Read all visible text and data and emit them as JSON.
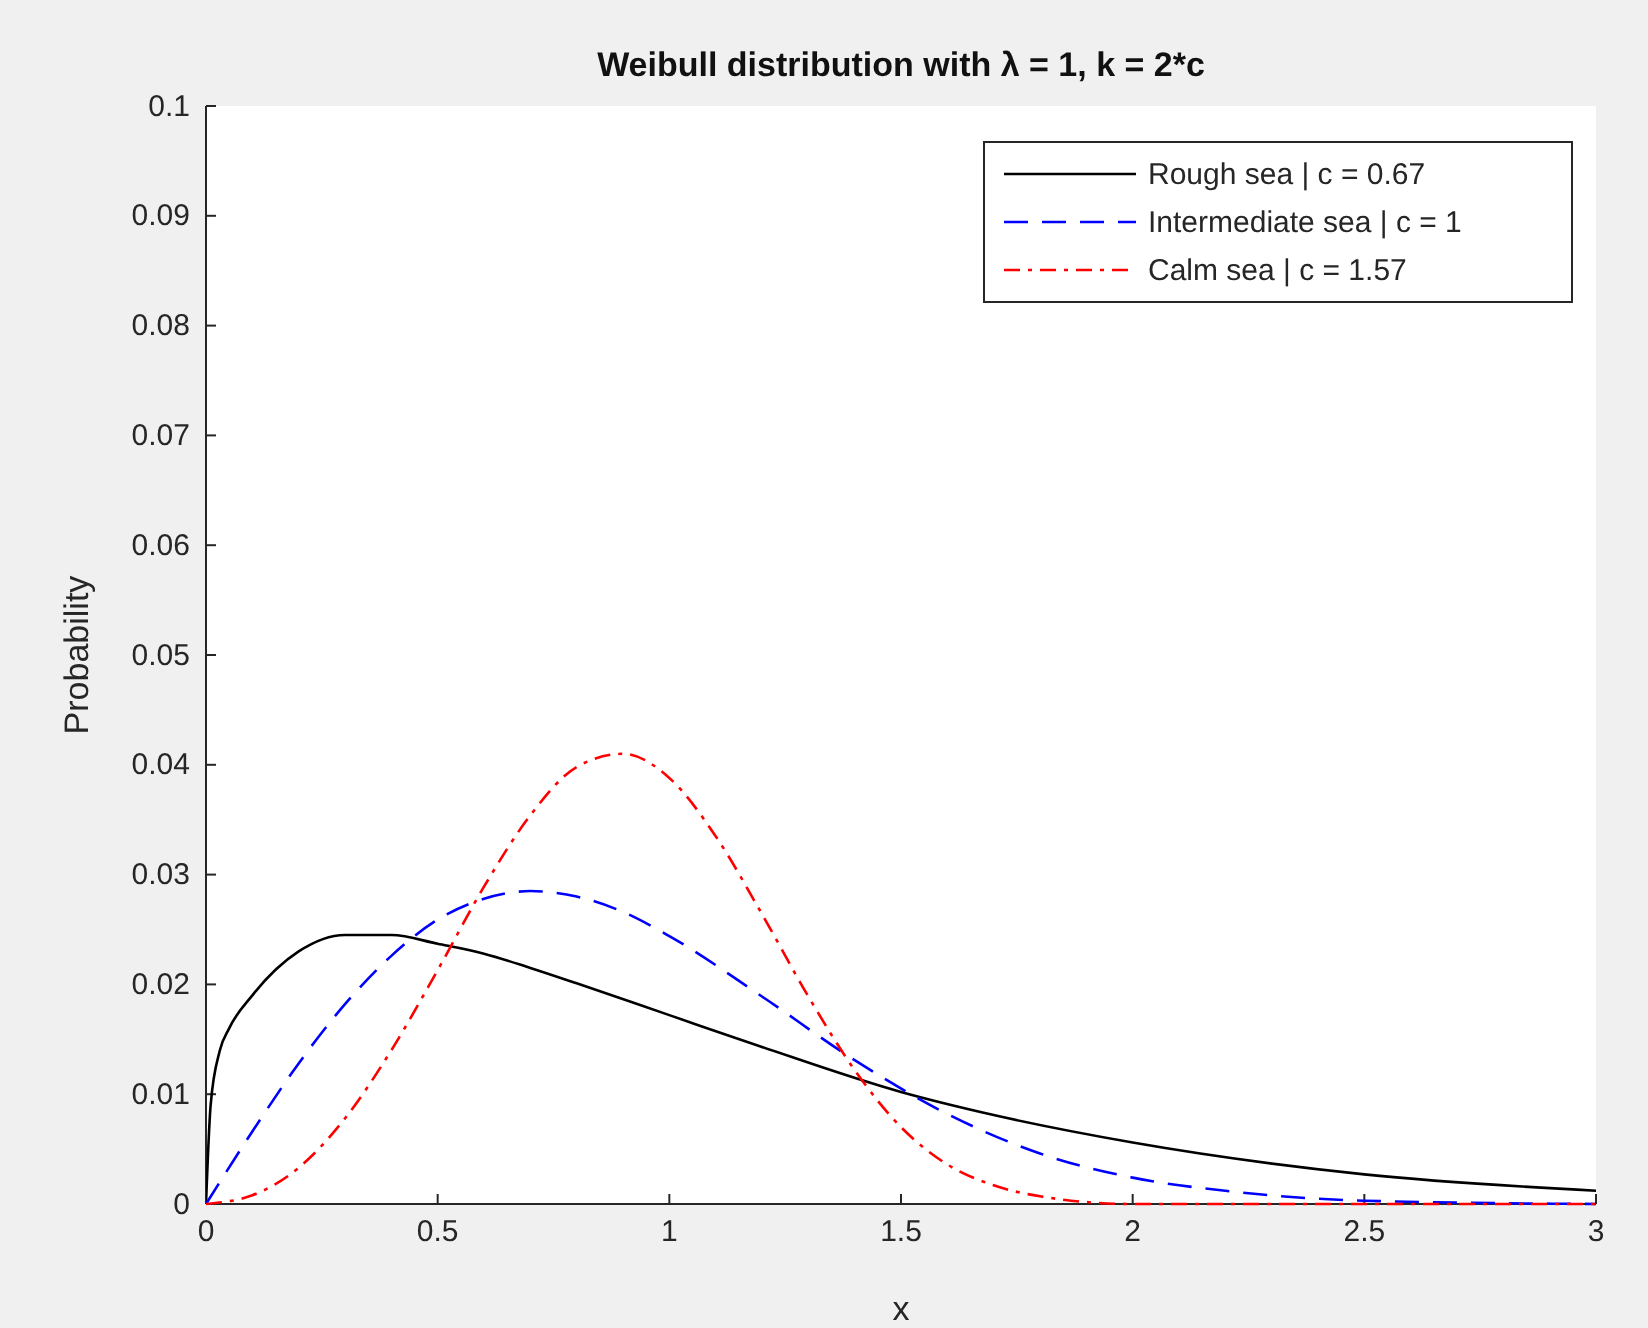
{
  "chart_data": {
    "type": "line",
    "title": "Weibull distribution with λ = 1, k = 2*c",
    "xlabel": "x",
    "ylabel": "Probability",
    "xlim": [
      0,
      3
    ],
    "xticks": [
      0,
      0.5,
      1,
      1.5,
      2,
      2.5,
      3
    ],
    "ylim": [
      0,
      0.1
    ],
    "yticks": [
      0,
      0.01,
      0.02,
      0.03,
      0.04,
      0.05,
      0.06,
      0.07,
      0.08,
      0.09,
      0.1
    ],
    "grid": false,
    "legend": "top right",
    "marker": "none",
    "series": [
      {
        "name": "Rough sea | c = 0.67",
        "color": "#000000",
        "line_style": "solid",
        "x": [
          0,
          0.01,
          0.03,
          0.05,
          0.1,
          0.2,
          0.3,
          0.4,
          0.5,
          0.6,
          0.7,
          0.8,
          1,
          1.2,
          1.5,
          1.7,
          2,
          2.5,
          3
        ],
        "values": [
          0,
          0.009,
          0.014,
          0.016,
          0.019,
          0.023,
          0.0245,
          0.0245,
          0.0237,
          0.0228,
          0.0215,
          0.0201,
          0.0172,
          0.0143,
          0.0102,
          0.0081,
          0.0056,
          0.0027,
          0.0012
        ]
      },
      {
        "name": "Intermediate sea | c = 1",
        "color": "#0000ff",
        "line_style": "dashed",
        "x": [
          0,
          0.1,
          0.2,
          0.3,
          0.4,
          0.5,
          0.6,
          0.7,
          0.8,
          0.9,
          1,
          1.2,
          1.4,
          1.6,
          1.8,
          2,
          2.2,
          2.5,
          3
        ],
        "values": [
          0,
          0.0066,
          0.0128,
          0.0182,
          0.0226,
          0.0259,
          0.0278,
          0.0285,
          0.028,
          0.0266,
          0.0244,
          0.0189,
          0.0131,
          0.0082,
          0.0046,
          0.0024,
          0.0012,
          0.0003,
          0
        ]
      },
      {
        "name": "Calm sea | c = 1.57",
        "color": "#ff0000",
        "line_style": "dashdot",
        "x": [
          0,
          0.1,
          0.2,
          0.3,
          0.4,
          0.5,
          0.6,
          0.7,
          0.8,
          0.9,
          1,
          1.1,
          1.2,
          1.3,
          1.4,
          1.5,
          1.6,
          1.7,
          1.8,
          2,
          3
        ],
        "values": [
          0,
          0.0008,
          0.0033,
          0.0078,
          0.014,
          0.0213,
          0.0289,
          0.0354,
          0.0398,
          0.041,
          0.0388,
          0.0335,
          0.0264,
          0.0189,
          0.0122,
          0.007,
          0.0036,
          0.0017,
          0.0007,
          0,
          0
        ]
      }
    ]
  }
}
